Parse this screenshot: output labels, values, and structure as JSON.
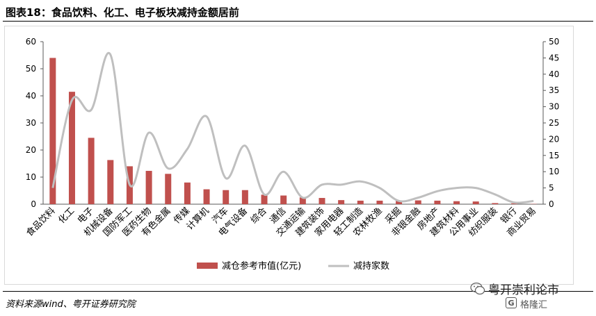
{
  "header": {
    "title": "图表18：食品饮料、化工、电子板块减持金额居前"
  },
  "footer": {
    "source": "资料来源wind、粤开证券研究院"
  },
  "watermark": {
    "name": "粤开崇利论市",
    "sub": "格隆汇",
    "icon": "wechat-icon",
    "badge": "G"
  },
  "colors": {
    "bar": "#c0504d",
    "line": "#bfbfbf",
    "axis": "#595959",
    "frame": "#d9d9d9"
  },
  "chart_data": {
    "type": "bar+line",
    "title": "",
    "categories": [
      "食品饮料",
      "化工",
      "电子",
      "机械设备",
      "国防军工",
      "医药生物",
      "有色金属",
      "传媒",
      "计算机",
      "汽车",
      "电气设备",
      "综合",
      "通信",
      "交通运输",
      "建筑装饰",
      "家用电器",
      "轻工制造",
      "农林牧渔",
      "采掘",
      "非银金融",
      "房地产",
      "建筑材料",
      "公用事业",
      "纺织服装",
      "银行",
      "商业贸易"
    ],
    "series": [
      {
        "name": "减仓参考市值(亿元)",
        "type": "bar",
        "axis": "left",
        "values": [
          54,
          41.5,
          24.5,
          16.3,
          14,
          12.3,
          11.2,
          8,
          5.5,
          5.2,
          5.2,
          3.5,
          3.2,
          2.5,
          2.3,
          1.5,
          1.3,
          1.3,
          1.2,
          1.4,
          1.3,
          1.1,
          1,
          0.4,
          0.3,
          0.1
        ]
      },
      {
        "name": "减持家数",
        "type": "line",
        "axis": "right",
        "values": [
          5,
          32,
          29,
          46,
          6,
          22,
          11,
          17,
          27,
          8,
          18,
          3,
          10,
          2,
          6,
          6,
          7,
          5,
          1,
          2,
          4,
          5,
          5,
          3,
          0.5,
          1
        ]
      }
    ],
    "y_left": {
      "min": 0,
      "max": 60,
      "ticks": [
        "0",
        "10",
        "20",
        "30",
        "40",
        "50",
        "60"
      ]
    },
    "y_right": {
      "min": 0,
      "max": 50,
      "ticks": [
        "0",
        "5",
        "10",
        "15",
        "20",
        "25",
        "30",
        "35",
        "40",
        "45",
        "50"
      ]
    },
    "grid": false,
    "legend": "bottom"
  }
}
